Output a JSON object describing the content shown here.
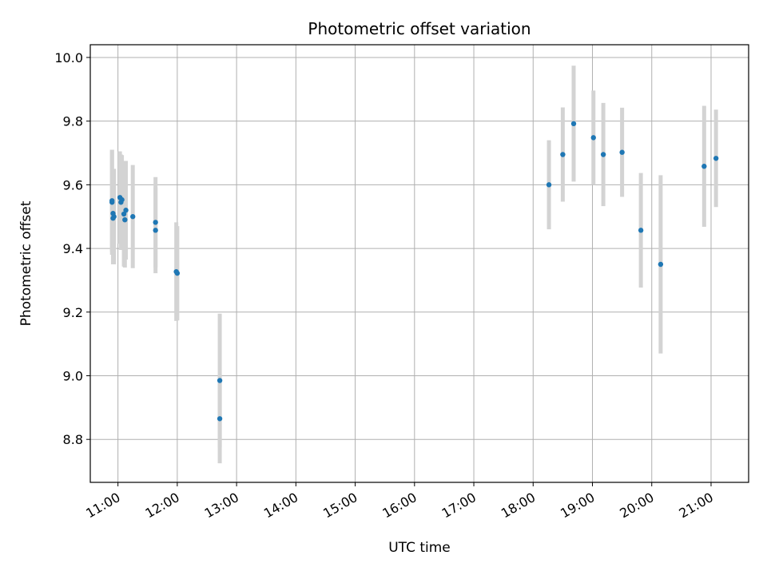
{
  "chart_data": {
    "type": "scatter",
    "title": "Photometric offset variation",
    "xlabel": "UTC time",
    "ylabel": "Photometric offset",
    "x_axis_type": "time",
    "xlim": [
      "10:32",
      "21:38"
    ],
    "ylim": [
      8.665,
      10.04
    ],
    "x_ticks": [
      "11:00",
      "12:00",
      "13:00",
      "14:00",
      "15:00",
      "16:00",
      "17:00",
      "18:00",
      "19:00",
      "20:00",
      "21:00"
    ],
    "y_ticks": [
      8.8,
      9.0,
      9.2,
      9.4,
      9.6,
      9.8,
      10.0
    ],
    "y_tick_labels": [
      "8.8",
      "9.0",
      "9.2",
      "9.4",
      "9.6",
      "9.8",
      "10.0"
    ],
    "grid": true,
    "point_color": "#1f77b4",
    "errorbar_color": "#d3d3d3",
    "points": [
      {
        "time": "10:54",
        "y": 9.545,
        "err": 0.165
      },
      {
        "time": "10:54",
        "y": 9.55,
        "err": 0.16
      },
      {
        "time": "10:55",
        "y": 9.51,
        "err": 0.13
      },
      {
        "time": "10:55",
        "y": 9.495,
        "err": 0.145
      },
      {
        "time": "10:56",
        "y": 9.5,
        "err": 0.15
      },
      {
        "time": "11:02",
        "y": 9.56,
        "err": 0.145
      },
      {
        "time": "11:03",
        "y": 9.545,
        "err": 0.15
      },
      {
        "time": "11:04",
        "y": 9.553,
        "err": 0.14
      },
      {
        "time": "11:06",
        "y": 9.508,
        "err": 0.165
      },
      {
        "time": "11:07",
        "y": 9.49,
        "err": 0.15
      },
      {
        "time": "11:08",
        "y": 9.52,
        "err": 0.155
      },
      {
        "time": "11:15",
        "y": 9.5,
        "err": 0.162
      },
      {
        "time": "11:38",
        "y": 9.482,
        "err": 0.142
      },
      {
        "time": "11:38",
        "y": 9.457,
        "err": 0.135
      },
      {
        "time": "11:59",
        "y": 9.327,
        "err": 0.155
      },
      {
        "time": "12:00",
        "y": 9.322,
        "err": 0.148
      },
      {
        "time": "12:43",
        "y": 8.985,
        "err": 0.21
      },
      {
        "time": "12:43",
        "y": 8.865,
        "err": 0.14
      },
      {
        "time": "18:16",
        "y": 9.6,
        "err": 0.14
      },
      {
        "time": "18:30",
        "y": 9.695,
        "err": 0.148
      },
      {
        "time": "18:41",
        "y": 9.792,
        "err": 0.182
      },
      {
        "time": "19:01",
        "y": 9.748,
        "err": 0.148
      },
      {
        "time": "19:11",
        "y": 9.695,
        "err": 0.162
      },
      {
        "time": "19:30",
        "y": 9.702,
        "err": 0.14
      },
      {
        "time": "19:49",
        "y": 9.457,
        "err": 0.18
      },
      {
        "time": "20:09",
        "y": 9.35,
        "err": 0.28
      },
      {
        "time": "20:53",
        "y": 9.658,
        "err": 0.19
      },
      {
        "time": "21:05",
        "y": 9.683,
        "err": 0.153
      }
    ]
  }
}
